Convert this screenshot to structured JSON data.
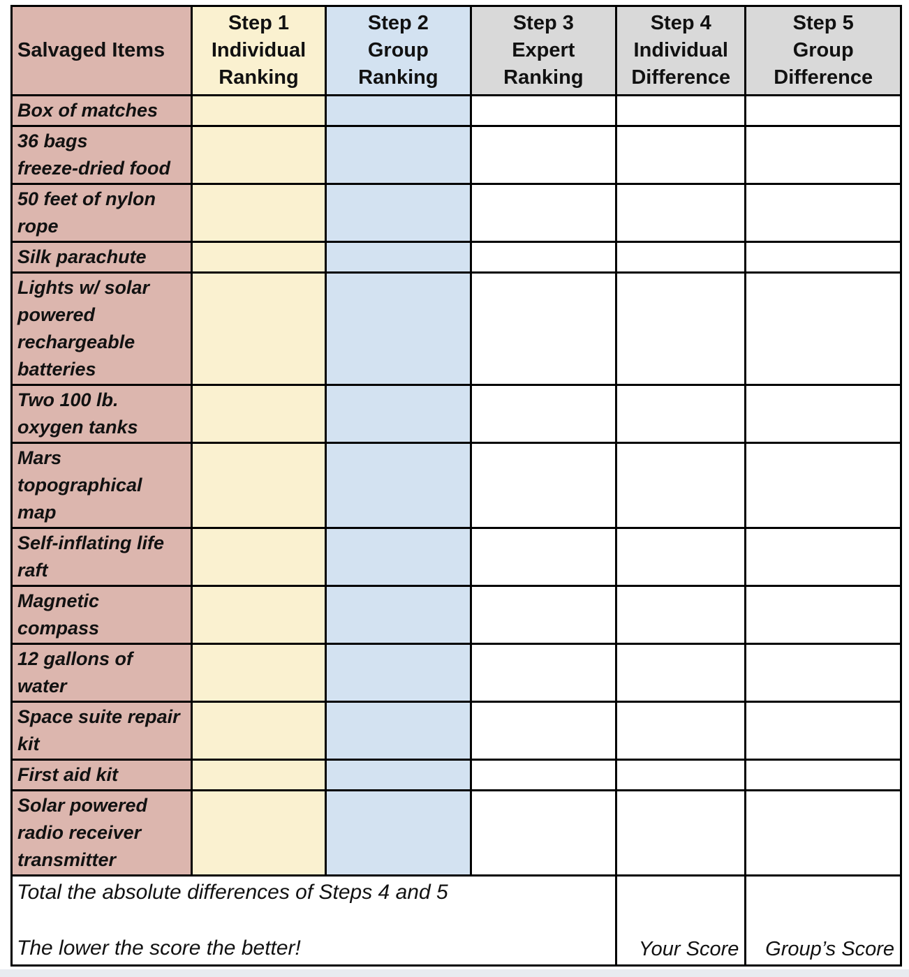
{
  "table": {
    "header": {
      "columns": [
        {
          "label": "Salvaged Items",
          "bg": "pink"
        },
        {
          "label": "Step 1\nIndividual\nRanking",
          "bg": "cream"
        },
        {
          "label": "Step 2\nGroup\nRanking",
          "bg": "blue"
        },
        {
          "label": "Step 3\nExpert\nRanking",
          "bg": "gray"
        },
        {
          "label": "Step 4\nIndividual\nDifference",
          "bg": "gray"
        },
        {
          "label": "Step 5\nGroup\nDifference",
          "bg": "gray"
        }
      ]
    },
    "items": [
      {
        "label": "Box of matches"
      },
      {
        "label": "36 bags\nfreeze-dried food"
      },
      {
        "label": "50 feet of nylon\nrope"
      },
      {
        "label": "Silk parachute"
      },
      {
        "label": "Lights w/ solar\npowered\nrechargeable\nbatteries"
      },
      {
        "label": "Two 100 lb.\noxygen tanks"
      },
      {
        "label": "Mars\ntopographical\nmap"
      },
      {
        "label": "Self-inflating life\nraft"
      },
      {
        "label": "Magnetic\ncompass"
      },
      {
        "label": "12 gallons of\nwater"
      },
      {
        "label": "Space suite repair\nkit"
      },
      {
        "label": "First aid kit"
      },
      {
        "label": "Solar powered\nradio receiver\ntransmitter"
      }
    ],
    "footer": {
      "instructions": "Total the absolute differences of Steps 4 and 5\n\nThe lower the score the better!",
      "your_score_label": "Your Score",
      "group_score_label": "Group’s Score"
    }
  },
  "colors": {
    "item_column_bg": "#dcb6ae",
    "step1_bg": "#faf1d0",
    "step2_bg": "#d3e2f1",
    "step_header_bg": "#d9d9d9",
    "table_border": "#000000",
    "page_strip_bg": "#e8ebf0"
  }
}
